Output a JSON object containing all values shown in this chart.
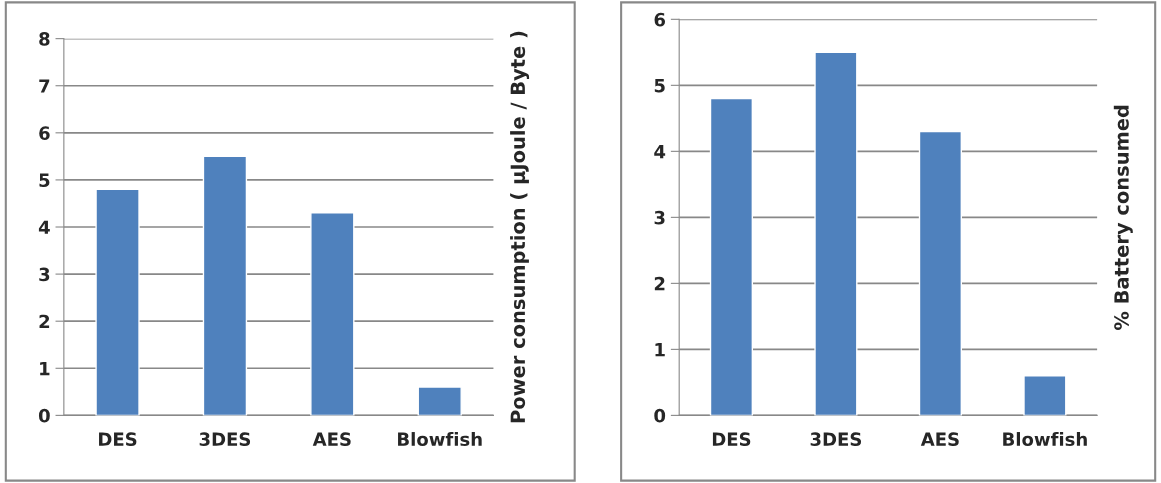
{
  "chart_data": [
    {
      "type": "bar",
      "categories": [
        "DES",
        "3DES",
        "AES",
        "Blowfish"
      ],
      "values": [
        4.8,
        5.5,
        4.3,
        0.6
      ],
      "color": "#4f81bd",
      "ylabel": "Power consumption ( μJoule / Byte )",
      "ylim": [
        0,
        8
      ],
      "yticks": [
        0,
        1,
        2,
        3,
        4,
        5,
        6,
        7,
        8
      ],
      "grid": "y"
    },
    {
      "type": "bar",
      "categories": [
        "DES",
        "3DES",
        "AES",
        "Blowfish"
      ],
      "values": [
        4.8,
        5.5,
        4.3,
        0.6
      ],
      "color": "#4f81bd",
      "ylabel": "% Battery consumed",
      "ylim": [
        0,
        6
      ],
      "yticks": [
        0,
        1,
        2,
        3,
        4,
        5,
        6
      ],
      "grid": "y"
    }
  ]
}
